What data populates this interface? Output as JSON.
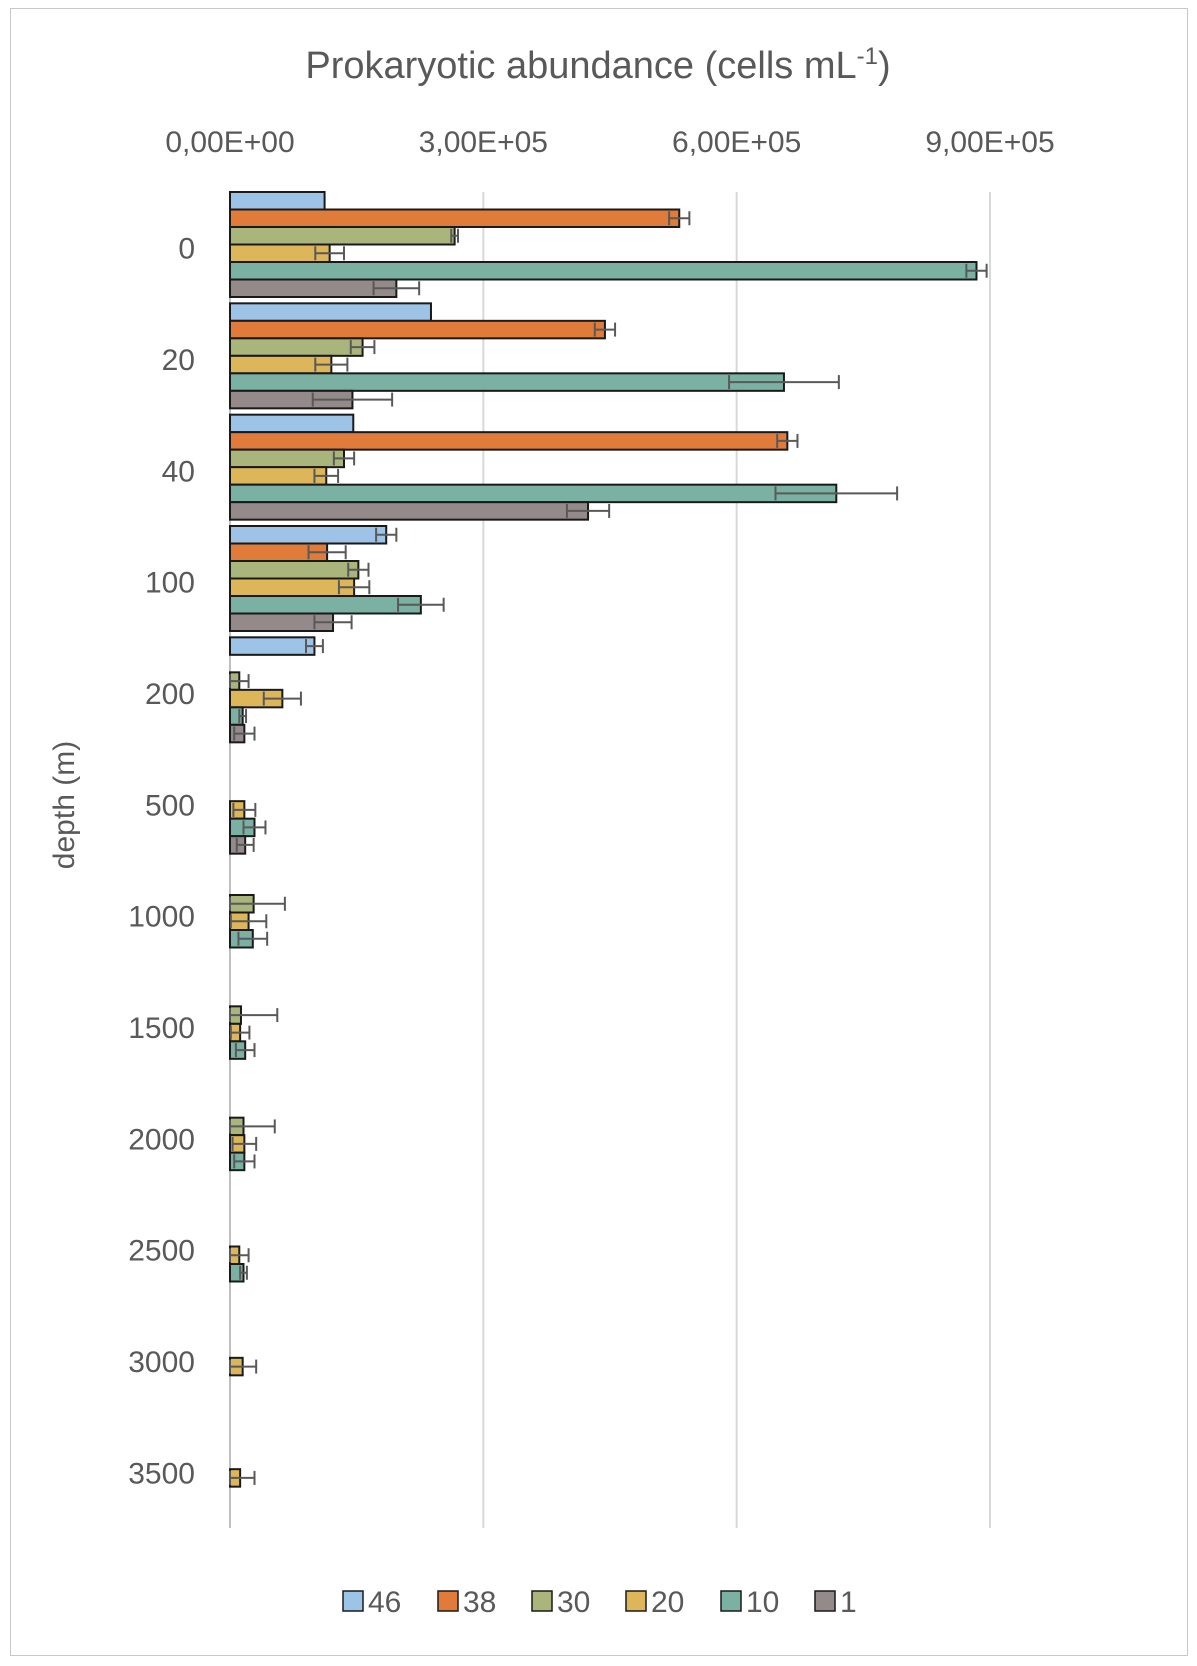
{
  "chart_data": {
    "type": "bar",
    "orientation": "horizontal",
    "title_main": "Prokaryotic abundance (cells mL",
    "title_sup": "-1",
    "title_close": ")",
    "ylabel": "depth (m)",
    "xlim": [
      0,
      900000
    ],
    "x_ticks": [
      {
        "value": 0,
        "label": "0,00E+00"
      },
      {
        "value": 300000,
        "label": "3,00E+05"
      },
      {
        "value": 600000,
        "label": "6,00E+05"
      },
      {
        "value": 900000,
        "label": "9,00E+05"
      }
    ],
    "categories": [
      "0",
      "20",
      "40",
      "100",
      "200",
      "500",
      "1000",
      "1500",
      "2000",
      "2500",
      "3000",
      "3500"
    ],
    "legend_position": "bottom",
    "series": [
      {
        "name": "46",
        "color": "#9dc3e6",
        "values": [
          112000,
          238000,
          146000,
          185000,
          100000,
          null,
          null,
          null,
          null,
          null,
          null,
          null
        ],
        "errors": [
          0,
          0,
          0,
          12000,
          10000,
          null,
          null,
          null,
          null,
          null,
          null,
          null
        ]
      },
      {
        "name": "38",
        "color": "#e07b39",
        "values": [
          532000,
          444000,
          660000,
          115000,
          null,
          null,
          null,
          null,
          null,
          null,
          null,
          null
        ],
        "errors": [
          12000,
          12000,
          12000,
          22000,
          null,
          null,
          null,
          null,
          null,
          null,
          null,
          null
        ]
      },
      {
        "name": "30",
        "color": "#a9b57b",
        "values": [
          266000,
          157000,
          135000,
          152000,
          11000,
          null,
          28000,
          13000,
          16000,
          null,
          null,
          null
        ],
        "errors": [
          4000,
          14000,
          12000,
          12000,
          11000,
          null,
          37000,
          43000,
          37000,
          null,
          null,
          null
        ]
      },
      {
        "name": "20",
        "color": "#ddb65a",
        "values": [
          118000,
          120000,
          114000,
          147000,
          62000,
          17000,
          22000,
          12000,
          17000,
          11000,
          15000,
          12000
        ],
        "errors": [
          17000,
          19000,
          14000,
          18000,
          22000,
          13000,
          21000,
          11000,
          14000,
          11000,
          16000,
          17000
        ],
        "center_anchor": [
          null,
          null,
          null,
          null,
          null,
          null,
          null,
          null,
          null,
          null,
          null,
          null
        ]
      },
      {
        "name": "10",
        "color": "#7ab1a2",
        "values": [
          884000,
          656000,
          718000,
          226000,
          15000,
          29000,
          27000,
          18000,
          17000,
          16000,
          null,
          null
        ],
        "errors": [
          12000,
          65000,
          72000,
          27000,
          4000,
          13000,
          17000,
          11000,
          12000,
          4000,
          null,
          null
        ]
      },
      {
        "name": "1",
        "color": "#948a8a",
        "values": [
          197000,
          145000,
          424000,
          122000,
          17000,
          18000,
          null,
          null,
          null,
          null,
          null,
          null
        ],
        "errors": [
          27000,
          47000,
          25000,
          22000,
          12000,
          10000,
          null,
          null,
          null,
          null,
          null,
          null
        ]
      }
    ]
  }
}
